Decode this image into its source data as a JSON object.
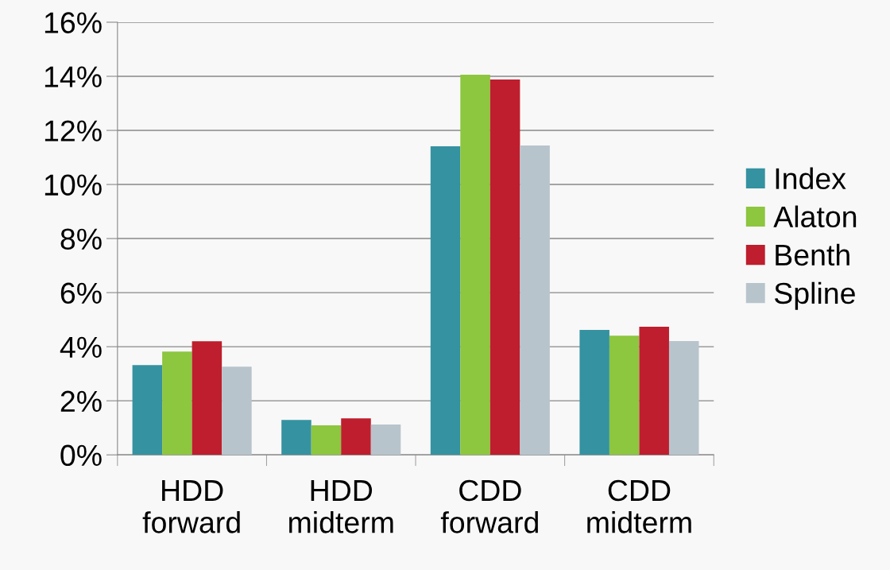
{
  "chart_data": {
    "type": "bar",
    "categories": [
      "HDD\nforward",
      "HDD\nmidterm",
      "CDD\nforward",
      "CDD\nmidterm"
    ],
    "series": [
      {
        "name": "Index",
        "color": "#3592a0",
        "values": [
          3.32,
          1.29,
          11.41,
          4.62
        ]
      },
      {
        "name": "Alaton",
        "color": "#8dc63f",
        "values": [
          3.82,
          1.09,
          14.06,
          4.41
        ]
      },
      {
        "name": "Benth",
        "color": "#be1e2d",
        "values": [
          4.2,
          1.35,
          13.88,
          4.74
        ]
      },
      {
        "name": "Spline",
        "color": "#b8c4cc",
        "values": [
          3.26,
          1.12,
          11.44,
          4.21
        ]
      }
    ],
    "ylim": [
      0,
      16
    ],
    "yticks": [
      {
        "value": 0,
        "label": "0%"
      },
      {
        "value": 2,
        "label": "2%"
      },
      {
        "value": 4,
        "label": "4%"
      },
      {
        "value": 6,
        "label": "6%"
      },
      {
        "value": 8,
        "label": "8%"
      },
      {
        "value": 10,
        "label": "10%"
      },
      {
        "value": 12,
        "label": "12%"
      },
      {
        "value": 14,
        "label": "14%"
      },
      {
        "value": 16,
        "label": "16%"
      }
    ],
    "grid": "y",
    "legend": "right"
  }
}
